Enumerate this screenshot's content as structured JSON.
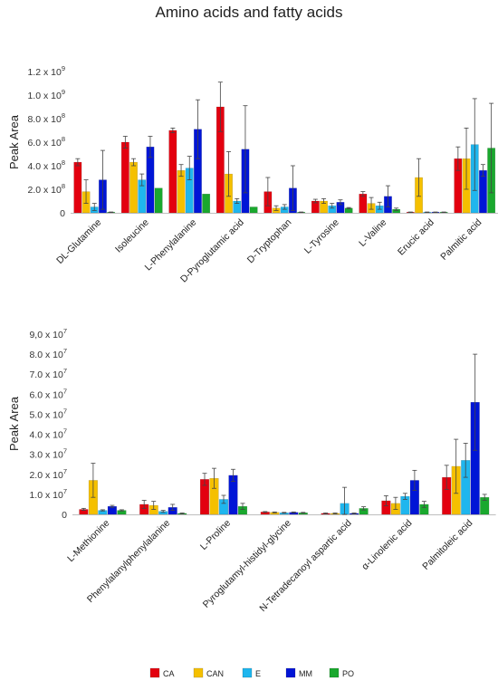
{
  "title": "Amino acids and fatty acids",
  "legend": [
    {
      "name": "CA",
      "color": "#e3000f"
    },
    {
      "name": "CAN",
      "color": "#f5c000"
    },
    {
      "name": "E",
      "color": "#1fb6ee"
    },
    {
      "name": "MM",
      "color": "#0015d6"
    },
    {
      "name": "PO",
      "color": "#1aa82e"
    }
  ],
  "chart_data": [
    {
      "type": "bar",
      "ylabel": "Peak Area",
      "ylim": [
        0,
        1200000000
      ],
      "yticks": [
        {
          "value": 0,
          "mant": "0",
          "exp": ""
        },
        {
          "value": 200000000,
          "mant": "2.0 x 10",
          "exp": "8"
        },
        {
          "value": 400000000,
          "mant": "4.0 x 10",
          "exp": "8"
        },
        {
          "value": 600000000,
          "mant": "6.0 x 10",
          "exp": "8"
        },
        {
          "value": 800000000,
          "mant": "8.0 x 10",
          "exp": "8"
        },
        {
          "value": 1000000000,
          "mant": "1.0 x 10",
          "exp": "9"
        },
        {
          "value": 1200000000,
          "mant": "1.2 x 10",
          "exp": "9"
        }
      ],
      "categories": [
        "DL-Glutamine",
        "Isoleucine",
        "L-Phenylalanine",
        "D-Pyroglutamic acid",
        "D-Tryptophan",
        "L-Tyrosine",
        "L-Valine",
        "Erucic acid",
        "Palmitic acid"
      ],
      "series": [
        {
          "name": "CA",
          "values": [
            430000000,
            600000000,
            700000000,
            900000000,
            180000000,
            100000000,
            160000000,
            5000000,
            460000000
          ],
          "errors": [
            30000000,
            50000000,
            20000000,
            210000000,
            120000000,
            15000000,
            20000000,
            2000000,
            100000000
          ]
        },
        {
          "name": "CAN",
          "values": [
            180000000,
            430000000,
            360000000,
            330000000,
            40000000,
            100000000,
            80000000,
            300000000,
            460000000
          ],
          "errors": [
            100000000,
            30000000,
            50000000,
            190000000,
            20000000,
            20000000,
            50000000,
            160000000,
            260000000
          ]
        },
        {
          "name": "E",
          "values": [
            50000000,
            280000000,
            380000000,
            100000000,
            50000000,
            60000000,
            60000000,
            5000000,
            580000000
          ],
          "errors": [
            30000000,
            50000000,
            100000000,
            20000000,
            20000000,
            20000000,
            30000000,
            2000000,
            390000000
          ]
        },
        {
          "name": "MM",
          "values": [
            280000000,
            560000000,
            710000000,
            540000000,
            210000000,
            90000000,
            140000000,
            5000000,
            360000000
          ],
          "errors": [
            250000000,
            90000000,
            250000000,
            370000000,
            190000000,
            20000000,
            90000000,
            2000000,
            50000000
          ]
        },
        {
          "name": "PO",
          "values": [
            5000000,
            210000000,
            160000000,
            50000000,
            5000000,
            40000000,
            30000000,
            5000000,
            550000000
          ],
          "errors": [
            2000000,
            0,
            0,
            0,
            2000000,
            5000000,
            10000000,
            2000000,
            380000000
          ]
        }
      ]
    },
    {
      "type": "bar",
      "ylabel": "Peak Area",
      "ylim": [
        0,
        90000000
      ],
      "yticks": [
        {
          "value": 0,
          "mant": "0",
          "exp": ""
        },
        {
          "value": 10000000,
          "mant": "1.0 x 10",
          "exp": "7"
        },
        {
          "value": 20000000,
          "mant": "2.0 x 10",
          "exp": "7"
        },
        {
          "value": 30000000,
          "mant": "3.0 x 10",
          "exp": "7"
        },
        {
          "value": 40000000,
          "mant": "4.0 x 10",
          "exp": "7"
        },
        {
          "value": 50000000,
          "mant": "5.0 x 10",
          "exp": "7"
        },
        {
          "value": 60000000,
          "mant": "6.0 x 10",
          "exp": "7"
        },
        {
          "value": 70000000,
          "mant": "7.0 x 10",
          "exp": "7"
        },
        {
          "value": 80000000,
          "mant": "8.0 x 10",
          "exp": "7"
        },
        {
          "value": 90000000,
          "mant": "9,0 x 10",
          "exp": "7"
        }
      ],
      "categories": [
        "L-Methionine",
        "Phenylalanylphenylalanine",
        "L-Proline",
        "Pyroglutamyl-histidyl-glycine",
        "N-Tetradecanoyl aspartic acid",
        "α-Linolenic acid",
        "Palmitoleic acid"
      ],
      "series": [
        {
          "name": "CA",
          "values": [
            2500000,
            5000000,
            17500000,
            1200000,
            500000,
            6800000,
            18500000
          ],
          "errors": [
            500000,
            2000000,
            3000000,
            200000,
            200000,
            2500000,
            6000000
          ]
        },
        {
          "name": "CAN",
          "values": [
            17000000,
            4500000,
            18000000,
            1000000,
            500000,
            5500000,
            24000000
          ],
          "errors": [
            8500000,
            2000000,
            5000000,
            200000,
            200000,
            3000000,
            13500000
          ]
        },
        {
          "name": "E",
          "values": [
            2000000,
            1500000,
            7500000,
            800000,
            5500000,
            9000000,
            27000000
          ],
          "errors": [
            300000,
            500000,
            2000000,
            200000,
            8000000,
            1500000,
            8500000
          ]
        },
        {
          "name": "MM",
          "values": [
            4000000,
            3500000,
            19500000,
            1000000,
            500000,
            17000000,
            56000000
          ],
          "errors": [
            500000,
            1500000,
            3000000,
            200000,
            200000,
            5000000,
            24000000
          ]
        },
        {
          "name": "PO",
          "values": [
            2000000,
            500000,
            4000000,
            800000,
            3000000,
            5000000,
            8500000
          ],
          "errors": [
            300000,
            200000,
            1500000,
            200000,
            800000,
            1500000,
            1500000
          ]
        }
      ]
    }
  ]
}
